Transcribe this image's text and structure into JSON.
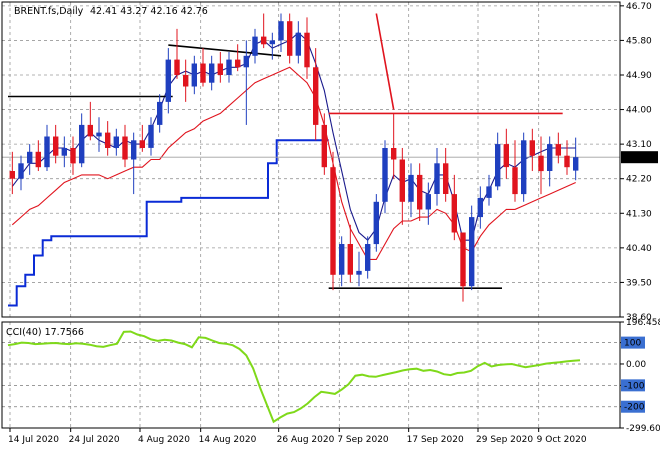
{
  "chart_data": [
    {
      "type": "candlestick",
      "title": "BRENT.fs,Daily",
      "ohlc_readout": "42.41 43.27 42.16 42.76",
      "current_price_label": "42.76",
      "ylim": [
        38.6,
        46.8
      ],
      "y_ticks": [
        "46.70",
        "45.80",
        "44.90",
        "44.00",
        "43.10",
        "42.20",
        "41.30",
        "40.40",
        "39.50",
        "38.60"
      ],
      "x_ticks": [
        "14 Jul 2020",
        "24 Jul 2020",
        "4 Aug 2020",
        "14 Aug 2020",
        "26 Aug 2020",
        "7 Sep 2020",
        "17 Sep 2020",
        "29 Sep 2020",
        "9 Oct 2020"
      ],
      "grid": true,
      "colors": {
        "bull": "#1f3fbf",
        "bear": "#e0141e",
        "ma_fast": "#1a1a8c",
        "ma_slow": "#e0141e",
        "trail": "#0a2bd6",
        "levels": "#000000",
        "resistance": "#e0141e"
      },
      "candles": [
        [
          42.4,
          42.9,
          41.8,
          42.2
        ],
        [
          42.2,
          42.8,
          41.9,
          42.6
        ],
        [
          42.6,
          43.1,
          42.3,
          42.9
        ],
        [
          42.9,
          43.2,
          42.4,
          42.5
        ],
        [
          42.5,
          43.6,
          42.4,
          43.3
        ],
        [
          43.3,
          43.6,
          42.6,
          42.8
        ],
        [
          42.8,
          43.3,
          42.5,
          43.0
        ],
        [
          43.0,
          43.3,
          42.3,
          42.6
        ],
        [
          42.6,
          43.9,
          42.5,
          43.6
        ],
        [
          43.6,
          44.2,
          43.2,
          43.3
        ],
        [
          43.3,
          43.8,
          42.9,
          43.4
        ],
        [
          43.4,
          43.7,
          42.8,
          43.0
        ],
        [
          43.0,
          43.5,
          42.8,
          43.3
        ],
        [
          43.3,
          43.6,
          42.5,
          42.7
        ],
        [
          42.7,
          43.4,
          41.8,
          43.2
        ],
        [
          43.2,
          43.6,
          42.9,
          43.0
        ],
        [
          43.0,
          43.8,
          42.8,
          43.6
        ],
        [
          43.6,
          44.4,
          43.4,
          44.2
        ],
        [
          44.2,
          45.6,
          43.9,
          45.3
        ],
        [
          45.3,
          46.1,
          44.8,
          44.9
        ],
        [
          44.9,
          45.3,
          44.2,
          44.6
        ],
        [
          44.6,
          45.4,
          44.4,
          45.2
        ],
        [
          45.2,
          45.6,
          44.6,
          44.7
        ],
        [
          44.7,
          45.4,
          44.5,
          45.2
        ],
        [
          45.2,
          45.5,
          44.7,
          44.9
        ],
        [
          44.9,
          45.5,
          44.7,
          45.3
        ],
        [
          45.3,
          45.7,
          45.0,
          45.1
        ],
        [
          45.1,
          45.8,
          43.6,
          45.4
        ],
        [
          45.4,
          46.1,
          45.2,
          45.9
        ],
        [
          45.9,
          46.5,
          45.6,
          45.7
        ],
        [
          45.7,
          46.0,
          45.3,
          45.8
        ],
        [
          45.8,
          46.5,
          45.5,
          46.3
        ],
        [
          46.3,
          46.5,
          45.2,
          45.4
        ],
        [
          45.4,
          46.3,
          45.2,
          46.0
        ],
        [
          46.0,
          46.4,
          44.8,
          45.1
        ],
        [
          45.1,
          45.6,
          43.2,
          43.6
        ],
        [
          43.6,
          43.9,
          42.3,
          42.5
        ],
        [
          42.5,
          42.9,
          39.3,
          39.7
        ],
        [
          39.7,
          40.7,
          39.4,
          40.5
        ],
        [
          40.5,
          41.0,
          39.5,
          39.7
        ],
        [
          39.7,
          40.3,
          39.4,
          39.8
        ],
        [
          39.8,
          40.7,
          39.6,
          40.5
        ],
        [
          40.5,
          41.8,
          40.3,
          41.6
        ],
        [
          41.6,
          43.2,
          41.3,
          43.0
        ],
        [
          43.0,
          43.9,
          42.2,
          42.7
        ],
        [
          42.7,
          43.0,
          41.0,
          41.6
        ],
        [
          41.6,
          42.6,
          41.2,
          42.3
        ],
        [
          42.3,
          42.6,
          41.1,
          41.4
        ],
        [
          41.4,
          42.1,
          41.0,
          41.8
        ],
        [
          41.8,
          43.0,
          41.5,
          42.6
        ],
        [
          42.6,
          43.0,
          41.6,
          41.8
        ],
        [
          41.8,
          42.3,
          40.6,
          40.8
        ],
        [
          40.8,
          40.8,
          39.0,
          39.4
        ],
        [
          39.4,
          41.5,
          39.3,
          41.2
        ],
        [
          41.2,
          42.0,
          40.9,
          41.7
        ],
        [
          41.7,
          42.3,
          41.5,
          42.0
        ],
        [
          42.0,
          43.4,
          41.9,
          43.1
        ],
        [
          43.1,
          43.5,
          42.2,
          42.5
        ],
        [
          42.5,
          43.2,
          41.6,
          41.8
        ],
        [
          41.8,
          43.4,
          41.6,
          43.2
        ],
        [
          43.2,
          43.5,
          42.4,
          42.8
        ],
        [
          42.8,
          43.3,
          41.8,
          42.4
        ],
        [
          42.4,
          43.3,
          42.0,
          43.1
        ],
        [
          43.1,
          43.4,
          42.6,
          42.8
        ],
        [
          42.8,
          43.2,
          42.3,
          42.5
        ],
        [
          42.41,
          43.27,
          42.16,
          42.76
        ]
      ],
      "series": [
        {
          "values": [
            42.0,
            42.3,
            42.6,
            42.6,
            42.8,
            43.0,
            43.0,
            42.9,
            43.2,
            43.4,
            43.2,
            43.1,
            43.0,
            43.2,
            43.1,
            43.1,
            43.5,
            44.0,
            44.6,
            44.9,
            45.0,
            44.9,
            45.0,
            44.9,
            45.0,
            45.1,
            45.1,
            45.2,
            45.7,
            45.8,
            45.6,
            45.7,
            45.8,
            46.0,
            45.8,
            45.2,
            44.5,
            43.4,
            42.4,
            41.4,
            40.8,
            40.6,
            40.9,
            41.7,
            42.3,
            42.1,
            42.2,
            41.9,
            41.8,
            42.3,
            42.3,
            41.6,
            40.6,
            40.6,
            41.5,
            41.9,
            42.4,
            42.6,
            42.5,
            42.7,
            42.8,
            42.9,
            43.0,
            43.0,
            43.0,
            43.0
          ]
        },
        {
          "values": [
            41.0,
            41.2,
            41.4,
            41.5,
            41.7,
            41.9,
            42.1,
            42.2,
            42.3,
            42.3,
            42.3,
            42.2,
            42.3,
            42.4,
            42.5,
            42.5,
            42.7,
            42.7,
            43.0,
            43.2,
            43.4,
            43.5,
            43.7,
            43.8,
            43.9,
            44.1,
            44.3,
            44.5,
            44.7,
            44.8,
            44.9,
            45.0,
            45.1,
            44.9,
            44.7,
            44.3,
            43.6,
            42.6,
            41.6,
            40.9,
            40.5,
            40.1,
            40.1,
            40.5,
            40.9,
            41.1,
            41.1,
            41.2,
            41.2,
            41.4,
            41.3,
            41.0,
            40.4,
            40.3,
            40.7,
            41.0,
            41.2,
            41.4,
            41.4,
            41.5,
            41.6,
            41.7,
            41.8,
            41.9,
            42.0,
            42.1
          ]
        }
      ],
      "trail_stop": [
        38.9,
        39.4,
        39.7,
        40.2,
        40.6,
        40.7,
        40.7,
        40.7,
        40.7,
        40.7,
        40.7,
        40.7,
        40.7,
        40.7,
        40.7,
        40.7,
        41.6,
        41.6,
        41.6,
        41.6,
        41.7,
        41.7,
        41.7,
        41.7,
        41.7,
        41.7,
        41.7,
        41.7,
        41.7,
        41.7,
        42.6,
        43.2,
        43.2,
        43.2,
        43.2,
        43.2,
        43.2
      ],
      "support_resistance": [
        {
          "from": 0,
          "to": 18,
          "level": 44.34
        },
        {
          "from": 37,
          "to": 56,
          "level": 39.35
        },
        {
          "from": 37,
          "to": 63,
          "level": 43.9
        }
      ],
      "trendlines": [
        {
          "from": 18,
          "to": 31,
          "start": 45.68,
          "end": 45.4
        },
        {
          "from": 42,
          "to": 44,
          "start": 46.5,
          "end": 44.0
        }
      ]
    },
    {
      "type": "line",
      "title": "CCI(40) 17.7566",
      "ylim": [
        -299.603,
        196.4581
      ],
      "y_ticks": [
        "196.4581",
        "100",
        "0.00",
        "-100",
        "-200",
        "-299.603"
      ],
      "levels": [
        100,
        0,
        -100,
        -200
      ],
      "color": "#7fd91a",
      "values": [
        88,
        93,
        100,
        98,
        93,
        95,
        97,
        98,
        95,
        93,
        97,
        95,
        90,
        83,
        80,
        88,
        95,
        150,
        152,
        138,
        130,
        115,
        108,
        113,
        110,
        100,
        93,
        78,
        125,
        122,
        110,
        98,
        95,
        88,
        70,
        40,
        -20,
        -110,
        -190,
        -270,
        -250,
        -232,
        -225,
        -208,
        -185,
        -155,
        -130,
        -135,
        -140,
        -120,
        -95,
        -55,
        -50,
        -58,
        -60,
        -52,
        -45,
        -38,
        -30,
        -25,
        -22,
        -32,
        -28,
        -35,
        -48,
        -52,
        -42,
        -40,
        -32,
        -10,
        5,
        -12,
        -5,
        -2,
        0,
        -8,
        -15,
        -10,
        -5,
        2,
        5,
        8,
        12,
        15,
        17.7566
      ]
    }
  ]
}
